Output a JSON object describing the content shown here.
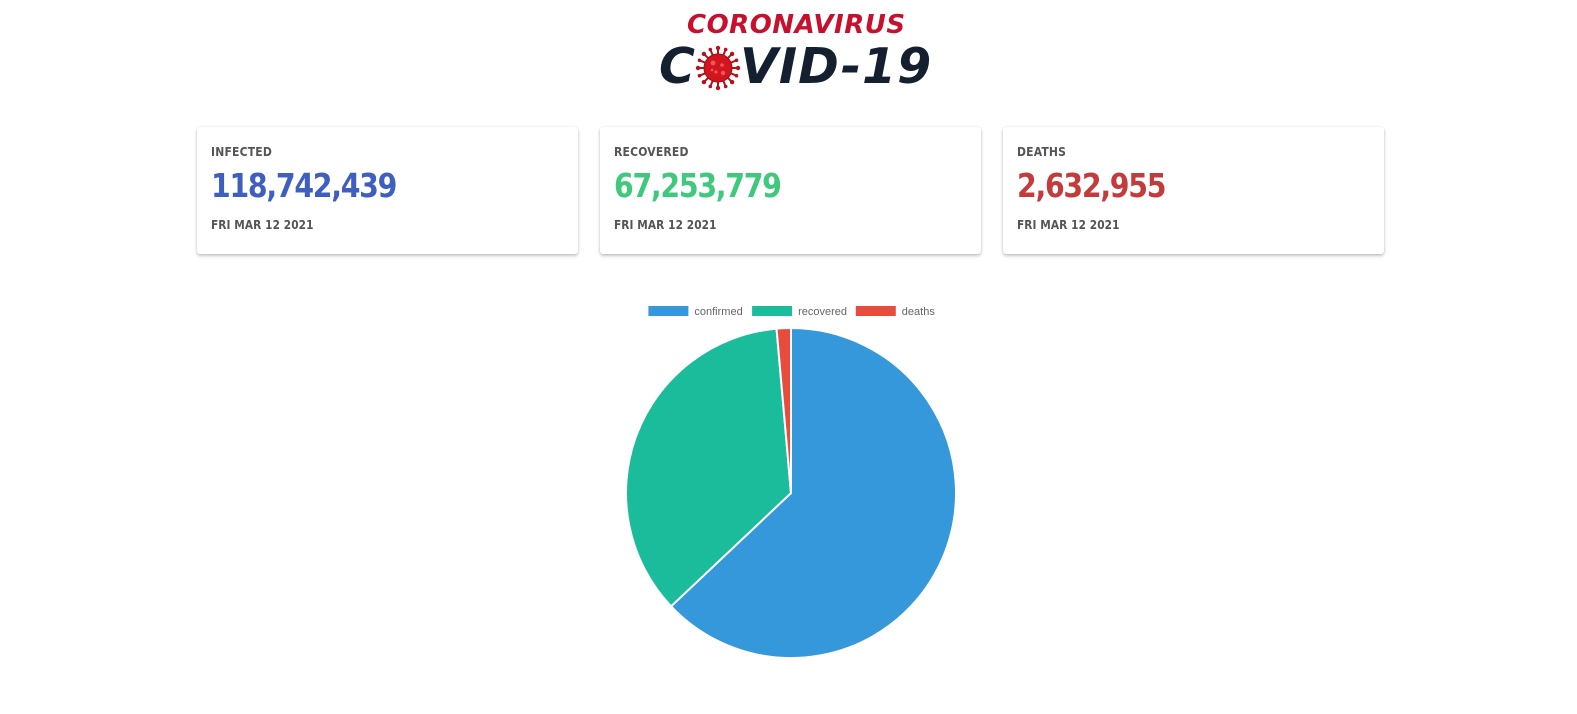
{
  "header": {
    "logo_top": "CORONAVIRUS",
    "logo_bottom_prefix": "C",
    "logo_bottom_suffix": "VID-19",
    "logo_icon": "virus-icon"
  },
  "cards": [
    {
      "label": "INFECTED",
      "value": "118,742,439",
      "date": "FRI MAR 12 2021",
      "color": "#3f5fc0"
    },
    {
      "label": "RECOVERED",
      "value": "67,253,779",
      "date": "FRI MAR 12 2021",
      "color": "#3ec97d"
    },
    {
      "label": "DEATHS",
      "value": "2,632,955",
      "date": "FRI MAR 12 2021",
      "color": "#c43b3b"
    }
  ],
  "chart_data": {
    "type": "pie",
    "legend_position": "top",
    "series": [
      {
        "name": "confirmed",
        "value": 118742439,
        "color": "#3498db"
      },
      {
        "name": "recovered",
        "value": 67253779,
        "color": "#1abc9c"
      },
      {
        "name": "deaths",
        "value": 2632955,
        "color": "#e74c3c"
      }
    ]
  }
}
